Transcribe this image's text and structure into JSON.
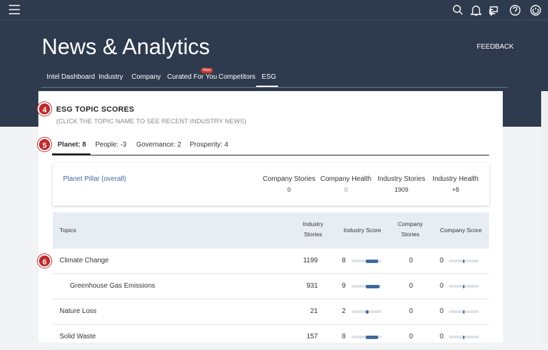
{
  "header": {
    "title": "News & Analytics",
    "feedback": "FEEDBACK",
    "nav": [
      "Intel Dashboard",
      "Industry",
      "Company",
      "Curated For You",
      "Competitors",
      "ESG"
    ],
    "new_badge": "New"
  },
  "annotations": [
    4,
    5,
    6
  ],
  "section": {
    "title": "ESG TOPIC SCORES",
    "subtitle": "(CLICK THE TOPIC NAME TO SEE RECENT INDUSTRY NEWS)"
  },
  "tabs": [
    {
      "label": "Planet:",
      "score": 8
    },
    {
      "label": "People:",
      "score": -3
    },
    {
      "label": "Governance:",
      "score": 2
    },
    {
      "label": "Prosperity:",
      "score": 4
    }
  ],
  "summary": {
    "pillar": "Planet Pillar (overall)",
    "headers": [
      "Company Stories",
      "Company Health",
      "Industry Stories",
      "Industry Health"
    ],
    "values": [
      0,
      0,
      1909,
      "+8"
    ]
  },
  "table": {
    "headers": [
      "Topics",
      "Industry Stories",
      "Industry Score",
      "Company Stories",
      "Company Score"
    ],
    "rows": [
      {
        "topic": "Climate Change",
        "industry_stories": 1199,
        "industry_score": 8,
        "company_stories": 0,
        "company_score": 0
      },
      {
        "topic": "Greenhouse Gas Emissions",
        "industry_stories": 931,
        "industry_score": 9,
        "company_stories": 0,
        "company_score": 0
      },
      {
        "topic": "Nature Loss",
        "industry_stories": 21,
        "industry_score": 2,
        "company_stories": 0,
        "company_score": 0
      },
      {
        "topic": "Solid Waste",
        "industry_stories": 157,
        "industry_score": 8,
        "company_stories": 0,
        "company_score": 0
      }
    ]
  }
}
